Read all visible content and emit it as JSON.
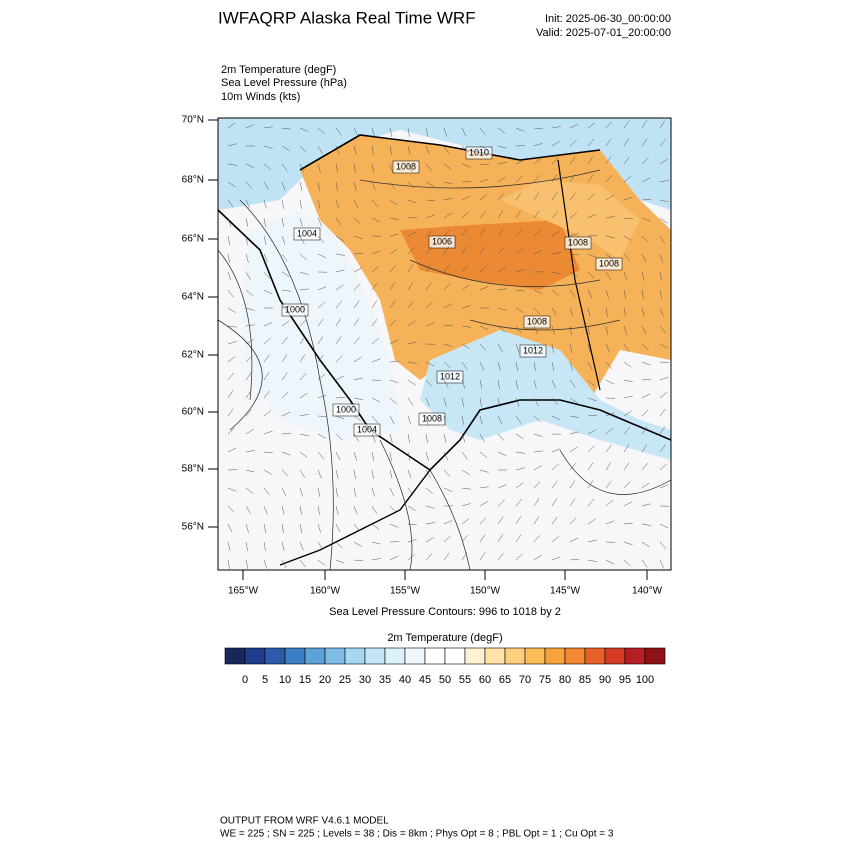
{
  "header": {
    "title": "IWFAQRP Alaska Real Time WRF",
    "init": "Init: 2025-06-30_00:00:00",
    "valid": "Valid: 2025-07-01_20:00:00"
  },
  "fields": [
    "2m Temperature   (degF)",
    "Sea Level Pressure   (hPa)",
    "10m Winds   (kts)"
  ],
  "map": {
    "lat_labels": [
      "70°N",
      "68°N",
      "66°N",
      "64°N",
      "62°N",
      "60°N",
      "58°N",
      "56°N"
    ],
    "lon_labels": [
      "165°W",
      "160°W",
      "155°W",
      "150°W",
      "145°W",
      "140°W"
    ],
    "contour_labels": [
      "1008",
      "1010",
      "1004",
      "1006",
      "1008",
      "1008",
      "1000",
      "1008",
      "1012",
      "1012",
      "1000",
      "1004",
      "1008"
    ],
    "contour_note": "Sea Level Pressure Contours: 996 to 1018 by 2"
  },
  "colorbar": {
    "title": "2m Temperature  (degF)",
    "colors": [
      "#18275e",
      "#1f3d8c",
      "#2a5ba9",
      "#3b7cc3",
      "#5ca4d8",
      "#7fbde6",
      "#a6d8f2",
      "#c4e6f7",
      "#ddf1fa",
      "#eff8fc",
      "#ffffff",
      "#ffffff",
      "#fff2d4",
      "#ffe3a6",
      "#fdd07f",
      "#fbbb57",
      "#f8a23e",
      "#f2882f",
      "#e7622a",
      "#d43c26",
      "#b71e24",
      "#8d1218"
    ],
    "ticks": [
      0,
      5,
      10,
      15,
      20,
      25,
      30,
      35,
      40,
      45,
      50,
      55,
      60,
      65,
      70,
      75,
      80,
      85,
      90,
      95,
      100
    ]
  },
  "footer": {
    "line1": "OUTPUT FROM WRF V4.6.1 MODEL",
    "line2": "WE = 225 ; SN = 225 ; Levels = 38 ; Dis = 8km ; Phys Opt = 8 ; PBL Opt = 1 ; Cu Opt = 3"
  }
}
